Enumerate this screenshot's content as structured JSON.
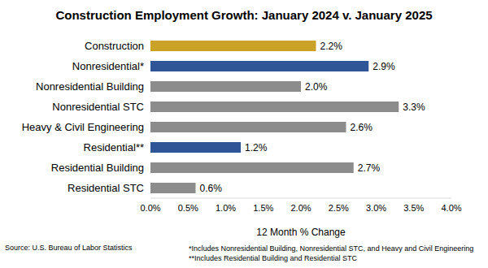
{
  "chart_data": {
    "type": "bar",
    "title": "Construction Employment Growth: January 2024 v. January 2025",
    "orientation": "horizontal",
    "categories": [
      "Construction",
      "Nonresidential*",
      "Nonresidential Building",
      "Nonresidential STC",
      "Heavy & Civil Engineering",
      "Residential**",
      "Residential Building",
      "Residential STC"
    ],
    "values": [
      2.2,
      2.9,
      2.0,
      3.3,
      2.6,
      1.2,
      2.7,
      0.6
    ],
    "value_labels": [
      "2.2%",
      "2.9%",
      "2.0%",
      "3.3%",
      "2.6%",
      "1.2%",
      "2.7%",
      "0.6%"
    ],
    "colors": [
      "#c9a227",
      "#2f5597",
      "#8c8c8c",
      "#8c8c8c",
      "#8c8c8c",
      "#2f5597",
      "#8c8c8c",
      "#8c8c8c"
    ],
    "x_label": "12 Month % Change",
    "xlim": [
      0,
      4
    ],
    "xticks": [
      {
        "value": 0,
        "label": "0.0%"
      },
      {
        "value": 0.5,
        "label": "0.5%"
      },
      {
        "value": 1,
        "label": "1.0%"
      },
      {
        "value": 1.5,
        "label": "1.5%"
      },
      {
        "value": 2,
        "label": "2.0%"
      },
      {
        "value": 2.5,
        "label": "2.5%"
      },
      {
        "value": 3,
        "label": "3.0%"
      },
      {
        "value": 3.5,
        "label": "3.5%"
      },
      {
        "value": 4,
        "label": "4.0%"
      }
    ],
    "data_labels": true,
    "grid": false,
    "annotations": [
      "Source:  U.S. Bureau of Labor Statistics",
      "*Includes Nonresidential Building, Nonresidential STC, and Heavy and Civil Engineering",
      "**Includes Residential Building and Residential STC"
    ]
  }
}
